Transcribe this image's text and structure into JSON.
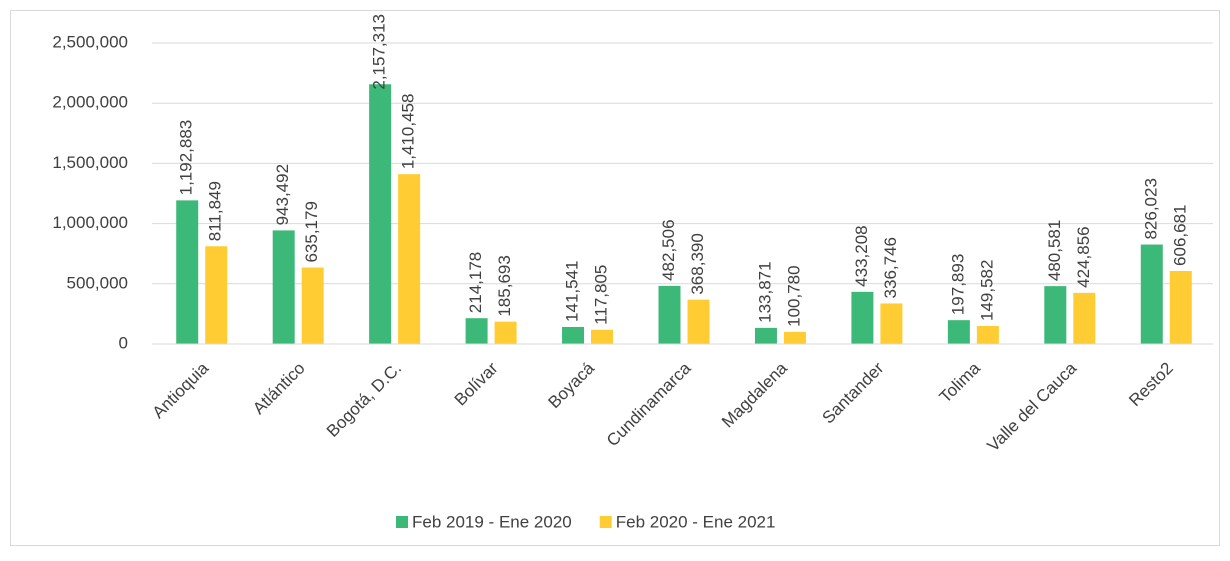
{
  "chart_data": {
    "type": "bar",
    "categories": [
      "Antioquia",
      "Atlántico",
      "Bogotá, D.C.",
      "Bolívar",
      "Boyacá",
      "Cundinamarca",
      "Magdalena",
      "Santander",
      "Tolima",
      "Valle del Cauca",
      "Resto2"
    ],
    "series": [
      {
        "name": "Feb 2019 - Ene 2020",
        "color": "#3cb878",
        "values": [
          1192883,
          943492,
          2157313,
          214178,
          141541,
          482506,
          133871,
          433208,
          197893,
          480581,
          826023
        ],
        "value_labels": [
          "1,192,883",
          "943,492",
          "2,157,313",
          "214,178",
          "141,541",
          "482,506",
          "133,871",
          "433,208",
          "197,893",
          "480,581",
          "826,023"
        ]
      },
      {
        "name": "Feb 2020 - Ene 2021",
        "color": "#ffcc33",
        "values": [
          811849,
          635179,
          1410458,
          185693,
          117805,
          368390,
          100780,
          336746,
          149582,
          424856,
          606681
        ],
        "value_labels": [
          "811,849",
          "635,179",
          "1,410,458",
          "185,693",
          "117,805",
          "368,390",
          "100,780",
          "336,746",
          "149,582",
          "424,856",
          "606,681"
        ]
      }
    ],
    "ylim": [
      0,
      2500000
    ],
    "yticks": [
      0,
      {
        "value": 500000,
        "label": "500,000"
      },
      {
        "value": 1000000,
        "label": "1,000,000"
      },
      {
        "value": 1500000,
        "label": "1,500,000"
      },
      {
        "value": 2000000,
        "label": "2,000,000"
      },
      {
        "value": 2500000,
        "label": "2,500,000"
      }
    ],
    "grid": true,
    "legend": "bottom"
  }
}
